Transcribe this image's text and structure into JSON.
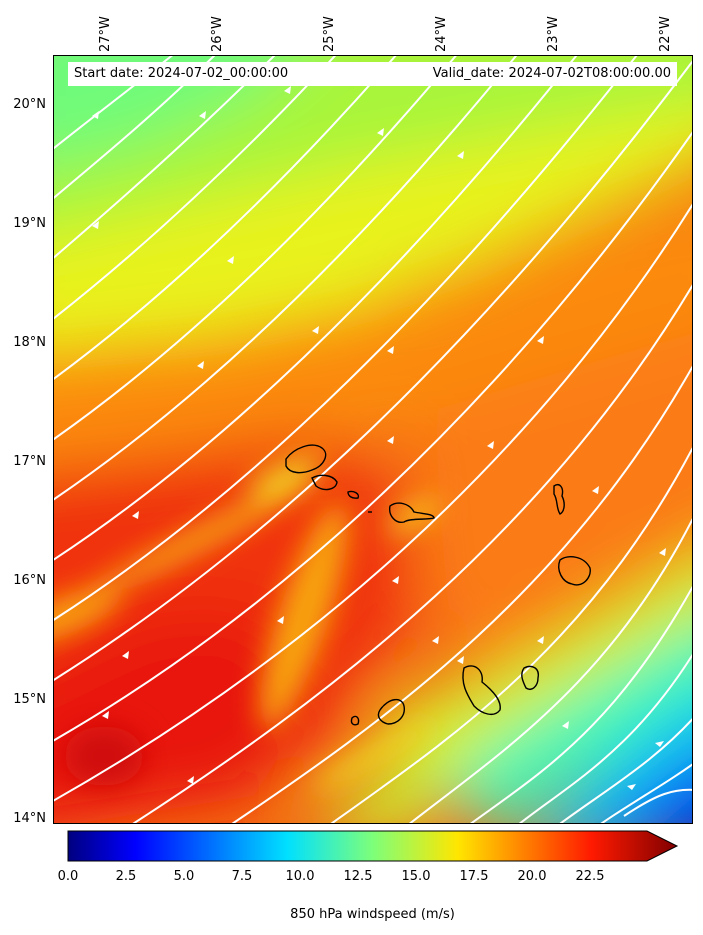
{
  "header": {
    "start_date": "Start date: 2024-07-02_00:00:00",
    "valid_date": "Valid_date: 2024-07-02T08:00:00.00"
  },
  "axes": {
    "lon_labels": [
      "27°W",
      "26°W",
      "25°W",
      "24°W",
      "23°W",
      "22°W"
    ],
    "lat_labels": [
      "20°N",
      "19°N",
      "18°N",
      "17°N",
      "16°N",
      "15°N",
      "14°N"
    ],
    "lon_range": [
      -27.4,
      -21.7
    ],
    "lat_range": [
      13.95,
      20.4
    ]
  },
  "colorbar": {
    "label": "850 hPa windspeed (m/s)",
    "ticks": [
      "0.0",
      "2.5",
      "5.0",
      "7.5",
      "10.0",
      "12.5",
      "15.0",
      "17.5",
      "20.0",
      "22.5"
    ],
    "range": [
      0,
      25
    ],
    "colormap": "jet",
    "extend": "max"
  },
  "field": {
    "variable": "850 hPa windspeed",
    "units": "m/s",
    "streamlines": true
  },
  "colors": {
    "streamline": "#ffffff",
    "coastline": "#000000"
  }
}
